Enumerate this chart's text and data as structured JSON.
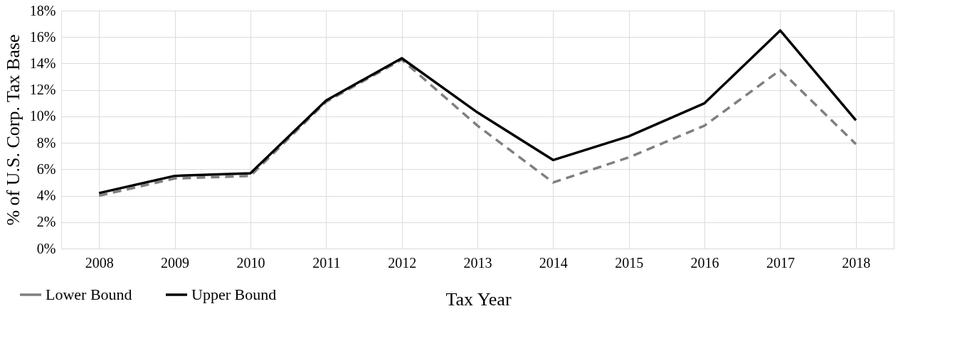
{
  "chart_data": {
    "type": "line",
    "xlabel": "Tax Year",
    "ylabel": "%  of U.S. Corp. Tax Base",
    "categories": [
      "2008",
      "2009",
      "2010",
      "2011",
      "2012",
      "2013",
      "2014",
      "2015",
      "2016",
      "2017",
      "2018"
    ],
    "series": [
      {
        "name": "Lower Bound",
        "color": "#7f7f7f",
        "line_style": "dashed",
        "values": [
          4.0,
          5.3,
          5.5,
          11.1,
          14.3,
          9.3,
          5.0,
          6.9,
          9.3,
          13.5,
          7.9
        ]
      },
      {
        "name": "Upper Bound",
        "color": "#000000",
        "line_style": "solid",
        "values": [
          4.2,
          5.5,
          5.7,
          11.2,
          14.4,
          10.3,
          6.7,
          8.5,
          11.0,
          16.5,
          9.7
        ]
      }
    ],
    "ylim": [
      0,
      18
    ],
    "yticks": [
      {
        "value": 0,
        "label": "0%"
      },
      {
        "value": 2,
        "label": "2%"
      },
      {
        "value": 4,
        "label": "4%"
      },
      {
        "value": 6,
        "label": "6%"
      },
      {
        "value": 8,
        "label": "8%"
      },
      {
        "value": 10,
        "label": "10%"
      },
      {
        "value": 12,
        "label": "12%"
      },
      {
        "value": 14,
        "label": "14%"
      },
      {
        "value": 16,
        "label": "16%"
      },
      {
        "value": 18,
        "label": "18%"
      }
    ],
    "grid": true,
    "legend": "bottom left",
    "marker": "none"
  }
}
